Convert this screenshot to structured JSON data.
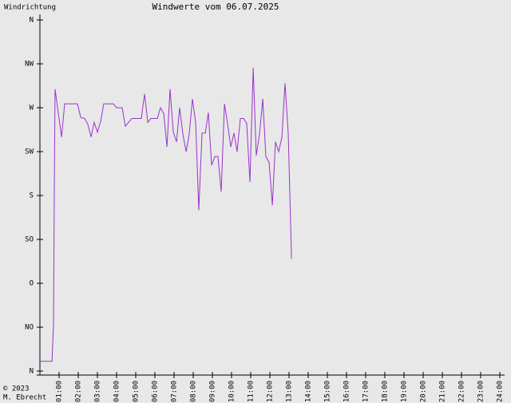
{
  "chart_data": {
    "type": "line",
    "title": "Windwerte vom 06.07.2025",
    "y_label": "Windrichtung",
    "copyright": "© 2023",
    "author": "M. Ebrecht",
    "xlim": [
      0,
      24
    ],
    "xticks": [
      {
        "value": 1,
        "label": "01:00"
      },
      {
        "value": 2,
        "label": "02:00"
      },
      {
        "value": 3,
        "label": "03:00"
      },
      {
        "value": 4,
        "label": "04:00"
      },
      {
        "value": 5,
        "label": "05:00"
      },
      {
        "value": 6,
        "label": "06:00"
      },
      {
        "value": 7,
        "label": "07:00"
      },
      {
        "value": 8,
        "label": "08:00"
      },
      {
        "value": 9,
        "label": "09:00"
      },
      {
        "value": 10,
        "label": "10:00"
      },
      {
        "value": 11,
        "label": "11:00"
      },
      {
        "value": 12,
        "label": "12:00"
      },
      {
        "value": 13,
        "label": "13:00"
      },
      {
        "value": 14,
        "label": "14:00"
      },
      {
        "value": 15,
        "label": "15:00"
      },
      {
        "value": 16,
        "label": "16:00"
      },
      {
        "value": 17,
        "label": "17:00"
      },
      {
        "value": 18,
        "label": "18:00"
      },
      {
        "value": 19,
        "label": "19:00"
      },
      {
        "value": 20,
        "label": "20:00"
      },
      {
        "value": 21,
        "label": "21:00"
      },
      {
        "value": 22,
        "label": "22:00"
      },
      {
        "value": 23,
        "label": "23:00"
      },
      {
        "value": 24,
        "label": "24:00"
      }
    ],
    "ylim": [
      0,
      360
    ],
    "yticks": [
      {
        "value": 0,
        "label": "N"
      },
      {
        "value": 45,
        "label": "NO"
      },
      {
        "value": 90,
        "label": "O"
      },
      {
        "value": 135,
        "label": "SO"
      },
      {
        "value": 180,
        "label": "S"
      },
      {
        "value": 225,
        "label": "SW"
      },
      {
        "value": 270,
        "label": "W"
      },
      {
        "value": 315,
        "label": "NW"
      },
      {
        "value": 360,
        "label": "N"
      }
    ],
    "series": [
      {
        "name": "Windrichtung",
        "color": "#9933cc",
        "x": [
          0,
          0.63,
          0.71,
          0.75,
          0.79,
          1.13,
          1.29,
          1.96,
          2.13,
          2.33,
          2.5,
          2.67,
          2.83,
          3.0,
          3.17,
          3.33,
          3.83,
          4.0,
          4.29,
          4.46,
          4.79,
          5.29,
          5.46,
          5.63,
          5.79,
          6.13,
          6.29,
          6.46,
          6.63,
          6.79,
          6.96,
          7.13,
          7.29,
          7.46,
          7.63,
          7.79,
          7.96,
          8.13,
          8.29,
          8.46,
          8.63,
          8.79,
          8.96,
          9.13,
          9.29,
          9.46,
          9.63,
          9.79,
          9.96,
          10.13,
          10.29,
          10.46,
          10.63,
          10.79,
          10.96,
          11.13,
          11.29,
          11.46,
          11.63,
          11.79,
          11.96,
          12.13,
          12.29,
          12.46,
          12.63,
          12.79,
          12.96,
          13.13
        ],
        "values": [
          10,
          10,
          49,
          184,
          289,
          240,
          274,
          274,
          260,
          259,
          253,
          240,
          255,
          245,
          256,
          274,
          274,
          270,
          270,
          251,
          259,
          259,
          284,
          255,
          259,
          259,
          270,
          264,
          230,
          289,
          245,
          235,
          270,
          243,
          225,
          243,
          279,
          254,
          165,
          244,
          244,
          265,
          211,
          220,
          220,
          184,
          274,
          254,
          230,
          244,
          225,
          259,
          259,
          254,
          194,
          311,
          221,
          243,
          279,
          220,
          214,
          170,
          235,
          225,
          240,
          295,
          243,
          115
        ]
      }
    ]
  }
}
